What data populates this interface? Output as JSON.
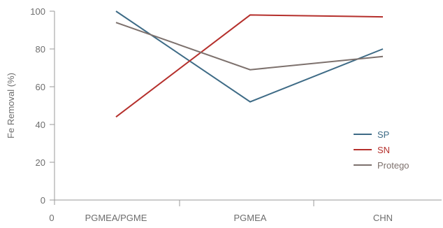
{
  "chart_data": {
    "type": "line",
    "title": "",
    "xlabel": "",
    "ylabel": "Fe Removal (%)",
    "categories": [
      "PGMEA/PGME",
      "PGMEA",
      "CHN"
    ],
    "x_origin_label": "0",
    "ylim": [
      0,
      100
    ],
    "yticks": [
      0,
      20,
      40,
      60,
      80,
      100
    ],
    "grid": false,
    "legend_position": "bottom-right",
    "series": [
      {
        "name": "SP",
        "color": "#3e6b86",
        "values": [
          100,
          52,
          80
        ]
      },
      {
        "name": "SN",
        "color": "#b5302c",
        "values": [
          44,
          98,
          97
        ]
      },
      {
        "name": "Protego",
        "color": "#7d716d",
        "values": [
          94,
          69,
          76
        ]
      }
    ]
  }
}
